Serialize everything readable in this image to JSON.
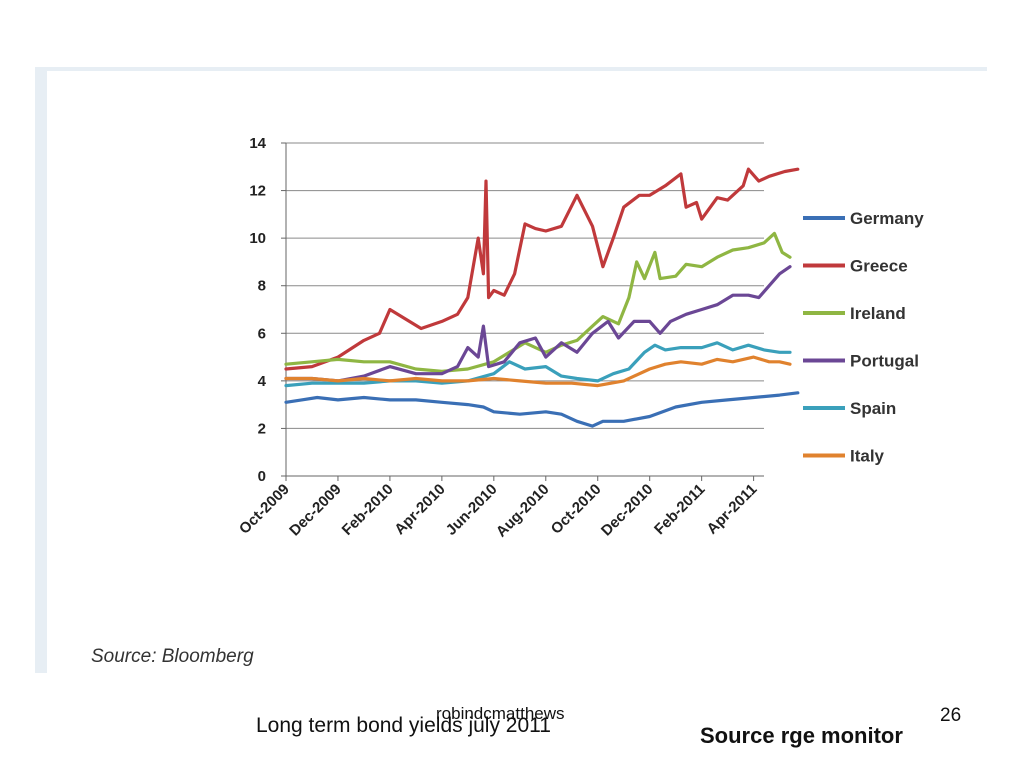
{
  "source_note": "Source: Bloomberg",
  "slide": {
    "title": "Long term bond yields july 2011",
    "author": "robindcmatthews",
    "number": "26",
    "source_credit": "Source rge monitor"
  },
  "chart_data": {
    "type": "line",
    "title": "",
    "xlabel": "",
    "ylabel": "",
    "ylim": [
      0,
      14
    ],
    "yticks": [
      0,
      2,
      4,
      6,
      8,
      10,
      12,
      14
    ],
    "xticks": [
      "Oct-2009",
      "Dec-2009",
      "Feb-2010",
      "Apr-2010",
      "Jun-2010",
      "Aug-2010",
      "Oct-2010",
      "Dec-2010",
      "Feb-2011",
      "Apr-2011"
    ],
    "grid": "horizontal",
    "legend_position": "right",
    "series": [
      {
        "name": "Germany",
        "color": "#3a6fb5",
        "points": [
          [
            0,
            3.1
          ],
          [
            0.3,
            3.2
          ],
          [
            0.6,
            3.3
          ],
          [
            1,
            3.2
          ],
          [
            1.5,
            3.3
          ],
          [
            2,
            3.2
          ],
          [
            2.5,
            3.2
          ],
          [
            3,
            3.1
          ],
          [
            3.5,
            3.0
          ],
          [
            3.8,
            2.9
          ],
          [
            4,
            2.7
          ],
          [
            4.5,
            2.6
          ],
          [
            5,
            2.7
          ],
          [
            5.3,
            2.6
          ],
          [
            5.6,
            2.3
          ],
          [
            5.9,
            2.1
          ],
          [
            6.1,
            2.3
          ],
          [
            6.5,
            2.3
          ],
          [
            7,
            2.5
          ],
          [
            7.5,
            2.9
          ],
          [
            8,
            3.1
          ],
          [
            8.5,
            3.2
          ],
          [
            9,
            3.3
          ],
          [
            9.5,
            3.4
          ],
          [
            9.85,
            3.5
          ]
        ]
      },
      {
        "name": "Greece",
        "color": "#c0393b",
        "points": [
          [
            0,
            4.5
          ],
          [
            0.5,
            4.6
          ],
          [
            1,
            5.0
          ],
          [
            1.5,
            5.7
          ],
          [
            1.8,
            6.0
          ],
          [
            2,
            7.0
          ],
          [
            2.3,
            6.6
          ],
          [
            2.6,
            6.2
          ],
          [
            3,
            6.5
          ],
          [
            3.3,
            6.8
          ],
          [
            3.5,
            7.5
          ],
          [
            3.7,
            10.0
          ],
          [
            3.8,
            8.5
          ],
          [
            3.85,
            12.4
          ],
          [
            3.9,
            7.5
          ],
          [
            4,
            7.8
          ],
          [
            4.2,
            7.6
          ],
          [
            4.4,
            8.5
          ],
          [
            4.6,
            10.6
          ],
          [
            4.8,
            10.4
          ],
          [
            5,
            10.3
          ],
          [
            5.3,
            10.5
          ],
          [
            5.6,
            11.8
          ],
          [
            5.9,
            10.5
          ],
          [
            6.1,
            8.8
          ],
          [
            6.3,
            10.0
          ],
          [
            6.5,
            11.3
          ],
          [
            6.8,
            11.8
          ],
          [
            7,
            11.8
          ],
          [
            7.3,
            12.2
          ],
          [
            7.6,
            12.7
          ],
          [
            7.7,
            11.3
          ],
          [
            7.9,
            11.5
          ],
          [
            8,
            10.8
          ],
          [
            8.3,
            11.7
          ],
          [
            8.5,
            11.6
          ],
          [
            8.8,
            12.2
          ],
          [
            8.9,
            12.9
          ],
          [
            9.1,
            12.4
          ],
          [
            9.3,
            12.6
          ],
          [
            9.6,
            12.8
          ],
          [
            9.85,
            12.9
          ]
        ]
      },
      {
        "name": "Ireland",
        "color": "#8fb643",
        "points": [
          [
            0,
            4.7
          ],
          [
            0.5,
            4.8
          ],
          [
            1,
            4.9
          ],
          [
            1.5,
            4.8
          ],
          [
            2,
            4.8
          ],
          [
            2.5,
            4.5
          ],
          [
            3,
            4.4
          ],
          [
            3.5,
            4.5
          ],
          [
            4,
            4.8
          ],
          [
            4.3,
            5.2
          ],
          [
            4.6,
            5.6
          ],
          [
            5,
            5.2
          ],
          [
            5.3,
            5.5
          ],
          [
            5.6,
            5.7
          ],
          [
            5.9,
            6.3
          ],
          [
            6.1,
            6.7
          ],
          [
            6.4,
            6.4
          ],
          [
            6.6,
            7.5
          ],
          [
            6.75,
            9.0
          ],
          [
            6.9,
            8.3
          ],
          [
            7.1,
            9.4
          ],
          [
            7.2,
            8.3
          ],
          [
            7.5,
            8.4
          ],
          [
            7.7,
            8.9
          ],
          [
            8,
            8.8
          ],
          [
            8.3,
            9.2
          ],
          [
            8.6,
            9.5
          ],
          [
            8.9,
            9.6
          ],
          [
            9.2,
            9.8
          ],
          [
            9.4,
            10.2
          ],
          [
            9.55,
            9.4
          ],
          [
            9.7,
            9.2
          ]
        ]
      },
      {
        "name": "Portugal",
        "color": "#6b4795",
        "points": [
          [
            0,
            4.1
          ],
          [
            0.5,
            4.1
          ],
          [
            1,
            4.0
          ],
          [
            1.5,
            4.2
          ],
          [
            2,
            4.6
          ],
          [
            2.5,
            4.3
          ],
          [
            3,
            4.3
          ],
          [
            3.3,
            4.6
          ],
          [
            3.5,
            5.4
          ],
          [
            3.7,
            5.0
          ],
          [
            3.8,
            6.3
          ],
          [
            3.9,
            4.6
          ],
          [
            4.2,
            4.8
          ],
          [
            4.5,
            5.6
          ],
          [
            4.8,
            5.8
          ],
          [
            5,
            5.0
          ],
          [
            5.3,
            5.6
          ],
          [
            5.6,
            5.2
          ],
          [
            5.9,
            6.0
          ],
          [
            6.2,
            6.5
          ],
          [
            6.4,
            5.8
          ],
          [
            6.7,
            6.5
          ],
          [
            7,
            6.5
          ],
          [
            7.2,
            6.0
          ],
          [
            7.4,
            6.5
          ],
          [
            7.7,
            6.8
          ],
          [
            8,
            7.0
          ],
          [
            8.3,
            7.2
          ],
          [
            8.6,
            7.6
          ],
          [
            8.9,
            7.6
          ],
          [
            9.1,
            7.5
          ],
          [
            9.3,
            8.0
          ],
          [
            9.5,
            8.5
          ],
          [
            9.7,
            8.8
          ]
        ]
      },
      {
        "name": "Spain",
        "color": "#3aa0bb",
        "points": [
          [
            0,
            3.8
          ],
          [
            0.5,
            3.9
          ],
          [
            1,
            3.9
          ],
          [
            1.5,
            3.9
          ],
          [
            2,
            4.0
          ],
          [
            2.5,
            4.0
          ],
          [
            3,
            3.9
          ],
          [
            3.5,
            4.0
          ],
          [
            4,
            4.3
          ],
          [
            4.3,
            4.8
          ],
          [
            4.6,
            4.5
          ],
          [
            5,
            4.6
          ],
          [
            5.3,
            4.2
          ],
          [
            5.6,
            4.1
          ],
          [
            6,
            4.0
          ],
          [
            6.3,
            4.3
          ],
          [
            6.6,
            4.5
          ],
          [
            6.9,
            5.2
          ],
          [
            7.1,
            5.5
          ],
          [
            7.3,
            5.3
          ],
          [
            7.6,
            5.4
          ],
          [
            8,
            5.4
          ],
          [
            8.3,
            5.6
          ],
          [
            8.6,
            5.3
          ],
          [
            8.9,
            5.5
          ],
          [
            9.2,
            5.3
          ],
          [
            9.5,
            5.2
          ],
          [
            9.7,
            5.2
          ]
        ]
      },
      {
        "name": "Italy",
        "color": "#e0822e",
        "points": [
          [
            0,
            4.1
          ],
          [
            0.5,
            4.1
          ],
          [
            1,
            4.0
          ],
          [
            1.5,
            4.1
          ],
          [
            2,
            4.0
          ],
          [
            2.5,
            4.1
          ],
          [
            3,
            4.0
          ],
          [
            3.5,
            4.0
          ],
          [
            4,
            4.1
          ],
          [
            4.5,
            4.0
          ],
          [
            5,
            3.9
          ],
          [
            5.5,
            3.9
          ],
          [
            6,
            3.8
          ],
          [
            6.5,
            4.0
          ],
          [
            7,
            4.5
          ],
          [
            7.3,
            4.7
          ],
          [
            7.6,
            4.8
          ],
          [
            8,
            4.7
          ],
          [
            8.3,
            4.9
          ],
          [
            8.6,
            4.8
          ],
          [
            9,
            5.0
          ],
          [
            9.3,
            4.8
          ],
          [
            9.5,
            4.8
          ],
          [
            9.7,
            4.7
          ]
        ]
      }
    ]
  }
}
